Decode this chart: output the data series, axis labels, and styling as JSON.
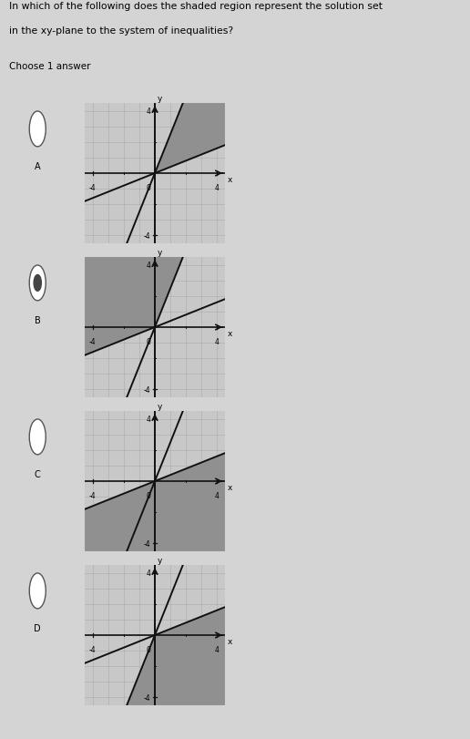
{
  "bg_color": "#d4d4d4",
  "page_bg": "#d4d4d4",
  "title_line1": "In which of the following does the shaded region represent the solution set",
  "title_line2": "in the xy-plane to the system of inequalities?",
  "choose_text": "Choose 1 answer",
  "separator_color": "#888888",
  "graph_bg": "#c8c8c8",
  "shade_color": "#909090",
  "line_color": "#111111",
  "axis_color": "#111111",
  "grid_color": "#aaaaaa",
  "tick_label_fontsize": 5.5,
  "axis_label_fontsize": 6.5,
  "line_width": 1.4,
  "slope1": 2.5,
  "intercept1": 0,
  "slope2": 0.4,
  "intercept2": 0,
  "xlim": [
    -4.5,
    4.5
  ],
  "ylim": [
    -4.5,
    4.5
  ]
}
